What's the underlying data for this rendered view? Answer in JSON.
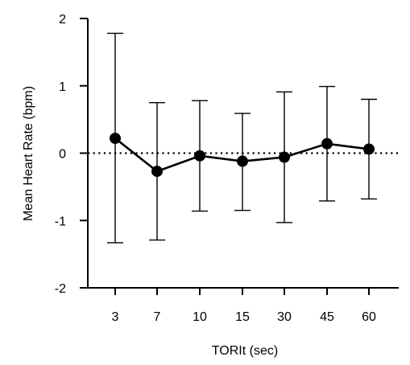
{
  "chart_data": {
    "type": "line",
    "title": "",
    "xlabel": "TORIt (sec)",
    "ylabel": "Mean Heart Rate (bpm)",
    "categories": [
      "3",
      "7",
      "10",
      "15",
      "30",
      "45",
      "60"
    ],
    "ylim": [
      -2,
      2
    ],
    "yticks": [
      -2,
      -1,
      0,
      1,
      2
    ],
    "yticklabels": [
      "-2",
      "-1",
      "0",
      "1",
      "2"
    ],
    "reference_line": {
      "y": 0,
      "style": "dotted"
    },
    "grid": false,
    "legend": "none",
    "series": [
      {
        "values": [
          0.22,
          -0.27,
          -0.04,
          -0.12,
          -0.06,
          0.14,
          0.06
        ],
        "error_upper": [
          1.78,
          0.75,
          0.78,
          0.59,
          0.91,
          0.99,
          0.8
        ],
        "error_lower": [
          -1.33,
          -1.29,
          -0.86,
          -0.85,
          -1.03,
          -0.71,
          -0.68
        ],
        "color": "#000000"
      }
    ]
  }
}
